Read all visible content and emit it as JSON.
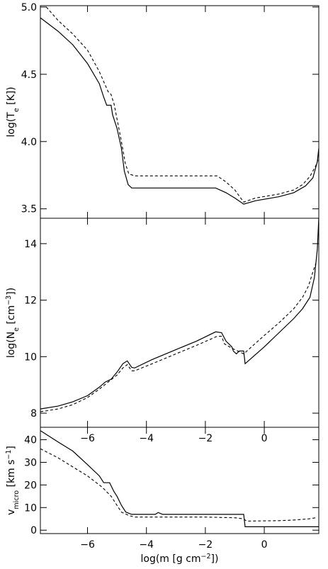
{
  "chart_data": [
    {
      "type": "line",
      "ylabel": "log(T",
      "ylabel_sub": "e",
      "ylabel_end": " [K])",
      "xlim": [
        -7.6,
        1.85
      ],
      "ylim": [
        3.43,
        5.01
      ],
      "yticks": [
        {
          "value": 3.5,
          "label": "3.5"
        },
        {
          "value": 4.0,
          "label": "4.0"
        },
        {
          "value": 4.5,
          "label": "4.5"
        },
        {
          "value": 5.0,
          "label": "5.0"
        }
      ],
      "xticks": [
        {
          "value": -6,
          "label": ""
        },
        {
          "value": -4,
          "label": ""
        },
        {
          "value": -2,
          "label": ""
        },
        {
          "value": 0,
          "label": ""
        }
      ],
      "series": [
        {
          "style": "solid",
          "points": [
            [
              -7.6,
              4.92
            ],
            [
              -7.0,
              4.82
            ],
            [
              -6.5,
              4.72
            ],
            [
              -6.0,
              4.58
            ],
            [
              -5.6,
              4.43
            ],
            [
              -5.45,
              4.33
            ],
            [
              -5.35,
              4.27
            ],
            [
              -5.2,
              4.27
            ],
            [
              -5.15,
              4.2
            ],
            [
              -5.0,
              4.1
            ],
            [
              -4.85,
              3.95
            ],
            [
              -4.75,
              3.78
            ],
            [
              -4.62,
              3.68
            ],
            [
              -4.5,
              3.655
            ],
            [
              -3.0,
              3.655
            ],
            [
              -1.65,
              3.655
            ],
            [
              -1.3,
              3.62
            ],
            [
              -1.0,
              3.58
            ],
            [
              -0.7,
              3.535
            ],
            [
              -0.3,
              3.56
            ],
            [
              0.5,
              3.59
            ],
            [
              1.0,
              3.62
            ],
            [
              1.4,
              3.67
            ],
            [
              1.65,
              3.73
            ],
            [
              1.8,
              3.85
            ],
            [
              1.85,
              3.95
            ]
          ]
        },
        {
          "style": "dashed",
          "points": [
            [
              -7.4,
              5.0
            ],
            [
              -7.0,
              4.9
            ],
            [
              -6.5,
              4.8
            ],
            [
              -6.0,
              4.68
            ],
            [
              -5.6,
              4.52
            ],
            [
              -5.4,
              4.42
            ],
            [
              -5.3,
              4.37
            ],
            [
              -5.2,
              4.35
            ],
            [
              -5.1,
              4.28
            ],
            [
              -5.0,
              4.17
            ],
            [
              -4.85,
              4.0
            ],
            [
              -4.72,
              3.84
            ],
            [
              -4.6,
              3.76
            ],
            [
              -4.4,
              3.745
            ],
            [
              -3.0,
              3.745
            ],
            [
              -1.6,
              3.745
            ],
            [
              -1.3,
              3.7
            ],
            [
              -1.0,
              3.64
            ],
            [
              -0.7,
              3.55
            ],
            [
              -0.3,
              3.58
            ],
            [
              0.5,
              3.61
            ],
            [
              1.0,
              3.64
            ],
            [
              1.3,
              3.68
            ],
            [
              1.55,
              3.74
            ],
            [
              1.75,
              3.82
            ],
            [
              1.85,
              3.88
            ]
          ]
        }
      ]
    },
    {
      "type": "line",
      "ylabel": "log(N",
      "ylabel_sub": "e",
      "ylabel_mid": " [cm",
      "ylabel_sup": "−3",
      "ylabel_end": "])",
      "xlim": [
        -7.6,
        1.85
      ],
      "ylim": [
        7.5,
        14.9
      ],
      "yticks": [
        {
          "value": 8,
          "label": "8"
        },
        {
          "value": 10,
          "label": "10"
        },
        {
          "value": 12,
          "label": "12"
        },
        {
          "value": 14,
          "label": "14"
        }
      ],
      "xticks": [
        {
          "value": -6,
          "label": "−6"
        },
        {
          "value": -4,
          "label": "−4"
        },
        {
          "value": -2,
          "label": "−2"
        },
        {
          "value": 0,
          "label": "0"
        }
      ],
      "series": [
        {
          "style": "solid",
          "points": [
            [
              -7.6,
              8.15
            ],
            [
              -7.0,
              8.25
            ],
            [
              -6.5,
              8.4
            ],
            [
              -6.0,
              8.62
            ],
            [
              -5.6,
              8.92
            ],
            [
              -5.4,
              9.1
            ],
            [
              -5.2,
              9.2
            ],
            [
              -5.0,
              9.45
            ],
            [
              -4.8,
              9.75
            ],
            [
              -4.65,
              9.85
            ],
            [
              -4.5,
              9.62
            ],
            [
              -4.4,
              9.6
            ],
            [
              -3.8,
              9.9
            ],
            [
              -3.0,
              10.25
            ],
            [
              -2.3,
              10.55
            ],
            [
              -1.65,
              10.88
            ],
            [
              -1.45,
              10.85
            ],
            [
              -1.3,
              10.55
            ],
            [
              -1.1,
              10.35
            ],
            [
              -1.05,
              10.2
            ],
            [
              -0.95,
              10.1
            ],
            [
              -0.85,
              10.2
            ],
            [
              -0.7,
              10.2
            ],
            [
              -0.65,
              9.75
            ],
            [
              0.0,
              10.35
            ],
            [
              0.5,
              10.85
            ],
            [
              1.0,
              11.35
            ],
            [
              1.3,
              11.7
            ],
            [
              1.55,
              12.1
            ],
            [
              1.7,
              12.8
            ],
            [
              1.8,
              13.8
            ],
            [
              1.85,
              14.9
            ]
          ]
        },
        {
          "style": "dashed",
          "points": [
            [
              -7.6,
              8.05
            ],
            [
              -7.0,
              8.15
            ],
            [
              -6.5,
              8.3
            ],
            [
              -6.0,
              8.55
            ],
            [
              -5.6,
              8.85
            ],
            [
              -5.3,
              9.1
            ],
            [
              -5.0,
              9.35
            ],
            [
              -4.8,
              9.6
            ],
            [
              -4.65,
              9.72
            ],
            [
              -4.5,
              9.5
            ],
            [
              -4.4,
              9.5
            ],
            [
              -3.8,
              9.75
            ],
            [
              -3.0,
              10.1
            ],
            [
              -2.3,
              10.4
            ],
            [
              -1.6,
              10.72
            ],
            [
              -1.45,
              10.72
            ],
            [
              -1.35,
              10.45
            ],
            [
              -1.1,
              10.3
            ],
            [
              -0.9,
              10.2
            ],
            [
              -0.7,
              10.1
            ],
            [
              0.0,
              10.75
            ],
            [
              0.5,
              11.2
            ],
            [
              1.0,
              11.7
            ],
            [
              1.3,
              12.1
            ],
            [
              1.5,
              12.5
            ],
            [
              1.65,
              13.0
            ],
            [
              1.75,
              13.3
            ]
          ]
        }
      ]
    },
    {
      "type": "line",
      "ylabel": "v",
      "ylabel_sub": "micro",
      "ylabel_mid": " [km s",
      "ylabel_sup": "−1",
      "ylabel_end": "]",
      "xlabel": "log(m  [g cm",
      "xlabel_sup": "−2",
      "xlabel_end": "])",
      "xlim": [
        -7.6,
        1.85
      ],
      "ylim": [
        -1.5,
        45.5
      ],
      "yticks": [
        {
          "value": 0,
          "label": "0"
        },
        {
          "value": 10,
          "label": "10"
        },
        {
          "value": 20,
          "label": "20"
        },
        {
          "value": 30,
          "label": "30"
        },
        {
          "value": 40,
          "label": "40"
        }
      ],
      "xticks": [
        {
          "value": -6,
          "label": "−6"
        },
        {
          "value": -4,
          "label": "−4"
        },
        {
          "value": -2,
          "label": "−2"
        },
        {
          "value": 0,
          "label": "0"
        }
      ],
      "series": [
        {
          "style": "solid",
          "points": [
            [
              -7.6,
              44
            ],
            [
              -7.0,
              39
            ],
            [
              -6.5,
              35
            ],
            [
              -6.0,
              29
            ],
            [
              -5.6,
              24
            ],
            [
              -5.45,
              21
            ],
            [
              -5.25,
              21
            ],
            [
              -5.1,
              17
            ],
            [
              -5.0,
              15
            ],
            [
              -4.85,
              11
            ],
            [
              -4.7,
              8
            ],
            [
              -4.5,
              7
            ],
            [
              -4.0,
              7
            ],
            [
              -3.7,
              7
            ],
            [
              -3.6,
              7.8
            ],
            [
              -3.45,
              7
            ],
            [
              -2.0,
              7
            ],
            [
              -1.0,
              7
            ],
            [
              -0.7,
              7
            ],
            [
              -0.65,
              1.5
            ],
            [
              0.5,
              1.5
            ],
            [
              1.2,
              1.5
            ],
            [
              1.85,
              1.5
            ]
          ]
        },
        {
          "style": "dashed",
          "points": [
            [
              -7.6,
              36
            ],
            [
              -7.0,
              32
            ],
            [
              -6.5,
              28
            ],
            [
              -6.0,
              24
            ],
            [
              -5.5,
              19
            ],
            [
              -5.2,
              15
            ],
            [
              -5.0,
              11
            ],
            [
              -4.85,
              8
            ],
            [
              -4.6,
              6.5
            ],
            [
              -4.4,
              5.8
            ],
            [
              -3.0,
              5.8
            ],
            [
              -2.0,
              5.8
            ],
            [
              -1.0,
              5.5
            ],
            [
              -0.7,
              5
            ],
            [
              -0.6,
              4
            ],
            [
              0.5,
              4.2
            ],
            [
              1.0,
              4.5
            ],
            [
              1.5,
              5
            ],
            [
              1.75,
              5.5
            ]
          ]
        }
      ]
    }
  ]
}
